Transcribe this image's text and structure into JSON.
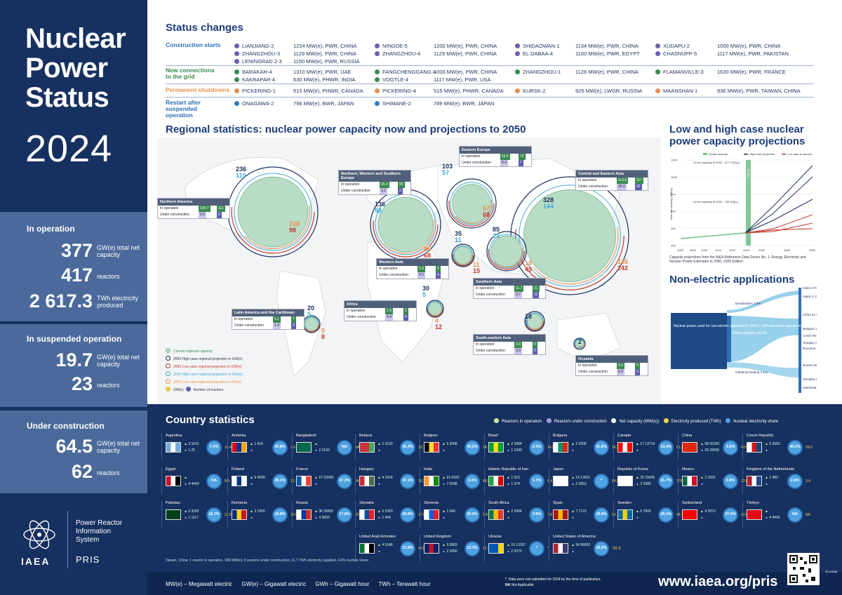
{
  "left": {
    "title": [
      "Nuclear",
      "Power",
      "Status"
    ],
    "year": "2024",
    "in_operation": {
      "heading": "In operation",
      "rows": [
        {
          "num": "377",
          "label": "GW(e) total net capacity"
        },
        {
          "num": "417",
          "label": "reactors"
        },
        {
          "num": "2 617.3",
          "label": "TWh electricity produced"
        }
      ]
    },
    "suspended": {
      "heading": "In suspended operation",
      "rows": [
        {
          "num": "19.7",
          "label": "GW(e) total net capacity"
        },
        {
          "num": "23",
          "label": "reactors"
        }
      ]
    },
    "construction": {
      "heading": "Under construction",
      "rows": [
        {
          "num": "64.5",
          "label": "GW(e) total net capacity"
        },
        {
          "num": "62",
          "label": "reactors"
        }
      ]
    },
    "pris_name": [
      "Power Reactor",
      "Information",
      "System"
    ],
    "pris": "PRIS",
    "iaea": "IAEA"
  },
  "status": {
    "title": "Status changes",
    "labels": {
      "starts": "Construction starts",
      "connections": "New connections to the grid",
      "shutdowns": "Permanent shutdowns",
      "restart": "Restart after suspended operation"
    },
    "colors": {
      "starts": "#6f5fb0",
      "connections": "#3a8a4f",
      "shutdowns": "#e8904e",
      "restart": "#2c7cc3"
    },
    "starts": [
      [
        "LIANJIANG-2",
        "1224 MW(e), PWR, CHINA"
      ],
      [
        "ZHANGZHOU-3",
        "1129 MW(e), PWR, CHINA"
      ],
      [
        "LENINGRAD 2-3",
        "1150 MW(e), PWR, RUSSIA"
      ],
      [
        "NINGDE-5",
        "1200 MW(e), PWR, CHINA"
      ],
      [
        "ZHANGZHOU-4",
        "1129 MW(e), PWR, CHINA"
      ],
      [
        "SHIDAOWAN-1",
        "1134 MW(e), PWR, CHINA"
      ],
      [
        "EL DABAA-4",
        "1100 MW(e), PWR, EGYPT"
      ],
      [
        "XUDAPU-2",
        "1000 MW(e), PWR, CHINA"
      ],
      [
        "CHASNUPP-5",
        "1117 MW(e), PWR, PAKISTAN"
      ]
    ],
    "connections": [
      [
        "BARAKAH-4",
        "1310 MW(e), PWR, UAE"
      ],
      [
        "KAKRAPAR-4",
        "630 MW(e), PHWR, INDIA"
      ],
      [
        "FANGCHENGGANG-4",
        "1000 MW(e), PWR, CHINA"
      ],
      [
        "VOGTLE-4",
        "1117 MW(e), PWR, USA"
      ],
      [
        "ZHANGZHOU-1",
        "1126 MW(e), PWR, CHINA"
      ],
      [
        "FLAMANVILLE-3",
        "1630 MW(e), PWR, FRANCE"
      ]
    ],
    "shutdowns": [
      [
        "PICKERING-1",
        "515 MW(e), PHWR, CANADA"
      ],
      [
        "PICKERING-4",
        "515 MW(e), PHWR, CANADA"
      ],
      [
        "KURSK-2",
        "925 MW(e), LWGR, RUSSIA"
      ],
      [
        "MAANSHAN-1",
        "936 MW(e), PWR, TAIWAN, CHINA"
      ]
    ],
    "restart": [
      [
        "ONAGAWA-2",
        "796 MW(e), BWR, JAPAN"
      ],
      [
        "SHIMANE-2",
        "789 MW(e), BWR, JAPAN"
      ]
    ]
  },
  "regional": {
    "title": "Regional statistics: nuclear power capacity now and projections to 2050",
    "row_op": "In operation",
    "row_uc": "Under construction",
    "regions": [
      {
        "name": "Northern America",
        "op": [
          "109.7",
          "111"
        ],
        "uc": [
          "0.0",
          "0"
        ],
        "hi": "236",
        "lo": "110",
        "h2": "108",
        "l2": "98"
      },
      {
        "name": "Northern, Western and Southern Europe",
        "op": [
          "95.4",
          "95"
        ],
        "uc": [
          "3.3",
          "2"
        ],
        "hi": "136",
        "lo": "92",
        "h2": "86",
        "l2": "68"
      },
      {
        "name": "Eastern Europe",
        "op": [
          "53.6",
          "72"
        ],
        "uc": [
          "6.4",
          "7"
        ],
        "hi": "103",
        "lo": "57",
        "h2": "57",
        "l2": "68"
      },
      {
        "name": "Central and Eastern Asia",
        "op": [
          "113.5",
          "117"
        ],
        "uc": [
          "35.0",
          "32"
        ],
        "hi": "328",
        "lo": "144",
        "h2": "136",
        "l2": "242"
      },
      {
        "name": "Western Asia",
        "op": [
          "5.8",
          "5"
        ],
        "uc": [
          "4.5",
          "4"
        ],
        "hi": "35",
        "lo": "11",
        "h2": "11",
        "l2": "15"
      },
      {
        "name": "Southern Asia",
        "op": [
          "11.7",
          "31"
        ],
        "uc": [
          "9.7",
          "11"
        ],
        "hi": "85",
        "lo": "22",
        "h2": "18",
        "l2": "45"
      },
      {
        "name": "Latin America and the Caribbean",
        "op": [
          "5.1",
          "7"
        ],
        "uc": [
          "1.4",
          "2"
        ],
        "hi": "20",
        "lo": "5",
        "h2": "5",
        "l2": "8"
      },
      {
        "name": "Africa",
        "op": [
          "1.9",
          "2"
        ],
        "uc": [
          "4.4",
          "4"
        ],
        "hi": "30",
        "lo": "5",
        "h2": "4",
        "l2": "12"
      },
      {
        "name": "South-eastern Asia",
        "op": [
          "0.0",
          "0"
        ],
        "uc": [
          "0.0",
          "0"
        ],
        "hi": "18",
        "lo": "4",
        "h2": "",
        "l2": ""
      },
      {
        "name": "Oceania",
        "op": [
          "0.0",
          "0"
        ],
        "uc": [
          "0.0",
          "0"
        ],
        "hi": "2",
        "lo": "0",
        "h2": "",
        "l2": ""
      }
    ],
    "legend": [
      "Current regional capacity",
      "2050 High case regional projection in GW(e)",
      "2050 Low case regional projection in GW(e)",
      "2030 High case regional projection in GW(e)",
      "2030 Low case regional projection in GW(e)"
    ],
    "legend_units": [
      "GW(e)",
      "Number of reactors"
    ]
  },
  "projection": {
    "title": "Low and high case nuclear power capacity projections",
    "legend": [
      "Actual capacity",
      "High case projection",
      "Low case projection"
    ],
    "note1": "2x the capacity of 2020 : 1177 GW(e)",
    "note2": "2x the capacity of 2023 : 765 GW(e)",
    "ylabel": "Total net capacity (GW(e))",
    "highlight": "COP28",
    "yticks": [
      "1200",
      "1000",
      "800",
      "600",
      "400",
      "300"
    ],
    "xticks": [
      "2000",
      "2004",
      "2009",
      "2014",
      "2019",
      "2024",
      "2030",
      "2040",
      "2050"
    ],
    "caption": "Capacity projections from the IAEA Reference Data Series No. 1: Energy, Electricity and Nuclear Power Estimates to 2050, 2025 Edition."
  },
  "nonelec": {
    "title": "Non-electric applications",
    "source": "Nuclear power used for non-electric applications 2644.1 GWh electrical equivalent of heat",
    "flows": [
      "Desalination 1.9%",
      "District heating 94.1%",
      "Industrial heating 4.1%"
    ],
    "targets": [
      "India 0.7%",
      "Japan 1.4%",
      "China 51.5%",
      "Bulgaria 1.4%",
      "Czech Republic 3.4%",
      "Hungary 0.4%",
      "Romania 1.1%",
      "Russia 36.6%",
      "Slovakia 3.3%",
      "Switzerland 0.7%"
    ]
  },
  "country": {
    "title": "Country statistics",
    "legend": [
      "Reactors in operation",
      "Reactors under construction",
      "Net capacity (MW(e))",
      "Electricity produced (TWh)",
      "Nuclear electricity share"
    ],
    "items": [
      {
        "name": "Argentina",
        "op": "3",
        "cap": "1641",
        "uc": "1",
        "ucc": "25",
        "share": "7.4%",
        "twh": "10.4",
        "c": [
          "#74acdf",
          "#ffffff",
          "#74acdf"
        ]
      },
      {
        "name": "Armenia",
        "op": "1",
        "cap": "416",
        "uc": "",
        "ucc": "",
        "share": "30.8%",
        "twh": "2.6",
        "c": [
          "#d90012",
          "#0033a0",
          "#f2a800"
        ]
      },
      {
        "name": "Bangladesh",
        "op": "",
        "cap": "",
        "uc": "2",
        "ucc": "2160",
        "share": "NA",
        "twh": "NA",
        "c": [
          "#006a4e",
          "#006a4e",
          "#006a4e"
        ]
      },
      {
        "name": "Belarus",
        "op": "2",
        "cap": "2220",
        "uc": "",
        "ucc": "",
        "share": "36.3%",
        "twh": "13.7",
        "c": [
          "#c8313e",
          "#c8313e",
          "#4aa657"
        ]
      },
      {
        "name": "Belgium",
        "op": "5",
        "cap": "3908",
        "uc": "",
        "ucc": "",
        "share": "42.2%",
        "twh": "28.7",
        "c": [
          "#000000",
          "#fdda24",
          "#ef3340"
        ]
      },
      {
        "name": "Brazil",
        "op": "2",
        "cap": "1884",
        "uc": "1",
        "ucc": "1340",
        "share": "2.3%",
        "twh": "14.9",
        "c": [
          "#009c3b",
          "#ffdf00",
          "#009c3b"
        ]
      },
      {
        "name": "Bulgaria",
        "op": "2",
        "cap": "2006",
        "uc": "",
        "ucc": "",
        "share": "41.6%",
        "twh": "16.1",
        "c": [
          "#ffffff",
          "#00966e",
          "#d62612"
        ]
      },
      {
        "name": "Canada",
        "op": "17",
        "cap": "12714",
        "uc": "",
        "ucc": "",
        "share": "13.4%",
        "twh": "81.2",
        "c": [
          "#ff0000",
          "#ffffff",
          "#ff0000"
        ]
      },
      {
        "name": "China",
        "op": "58",
        "cap": "55320",
        "uc": "29",
        "ucc": "28695",
        "share": "4.5%",
        "twh": "437.3",
        "c": [
          "#de2910",
          "#de2910",
          "#de2910"
        ]
      },
      {
        "name": "Czech Republic",
        "op": "6",
        "cap": "3963",
        "uc": "",
        "ucc": "",
        "share": "40.2%",
        "twh": "29.0",
        "c": [
          "#ffffff",
          "#d7141a",
          "#11457e"
        ]
      },
      {
        "name": "Egypt",
        "op": "",
        "cap": "",
        "uc": "4",
        "ucc": "4400",
        "share": "NA",
        "twh": "NA",
        "c": [
          "#ce1126",
          "#ffffff",
          "#000000"
        ]
      },
      {
        "name": "Finland",
        "op": "5",
        "cap": "4369",
        "uc": "",
        "ucc": "",
        "share": "39.1%",
        "twh": "31.1",
        "c": [
          "#ffffff",
          "#003580",
          "#ffffff"
        ]
      },
      {
        "name": "France",
        "op": "57",
        "cap": "63000",
        "uc": "",
        "ucc": "",
        "share": "67.3%",
        "twh": "364.4",
        "c": [
          "#0055a4",
          "#ffffff",
          "#ef4135"
        ]
      },
      {
        "name": "Hungary",
        "op": "4",
        "cap": "1916",
        "uc": "",
        "ucc": "",
        "share": "47.1%",
        "twh": "15.2",
        "c": [
          "#ce2939",
          "#ffffff",
          "#477050"
        ]
      },
      {
        "name": "India",
        "op": "21",
        "cap": "6920",
        "uc": "7",
        "ucc": "5398",
        "share": "3.3%",
        "twh": "48.3",
        "c": [
          "#ff9933",
          "#ffffff",
          "#138808"
        ]
      },
      {
        "name": "Islamic Republic of Iran",
        "op": "1",
        "cap": "915",
        "uc": "1",
        "ucc": "974",
        "share": "1.7%",
        "twh": "6.4",
        "c": [
          "#239f40",
          "#ffffff",
          "#da0000"
        ]
      },
      {
        "name": "Japan",
        "op": "14",
        "cap": "12631",
        "uc": "2",
        "ucc": "2653",
        "share": "*",
        "twh": "84.9",
        "c": [
          "#ffffff",
          "#ffffff",
          "#ffffff"
        ]
      },
      {
        "name": "Republic of Korea",
        "op": "26",
        "cap": "25609",
        "uc": "2",
        "ucc": "2680",
        "share": "31.7%",
        "twh": "179.4",
        "c": [
          "#ffffff",
          "#ffffff",
          "#ffffff"
        ]
      },
      {
        "name": "Mexico",
        "op": "2",
        "cap": "1552",
        "uc": "",
        "ucc": "",
        "share": "4.8%",
        "twh": "12.0",
        "c": [
          "#006847",
          "#ffffff",
          "#ce1126"
        ]
      },
      {
        "name": "Kingdom of the Netherlands",
        "op": "1",
        "cap": "482",
        "uc": "",
        "ucc": "",
        "share": "2.8%",
        "twh": "3.4",
        "c": [
          "#ae1c28",
          "#ffffff",
          "#21468b"
        ]
      },
      {
        "name": "Pakistan",
        "op": "6",
        "cap": "3262",
        "uc": "1",
        "ucc": "1117",
        "share": "16.7%",
        "twh": "22.8",
        "c": [
          "#01411c",
          "#01411c",
          "#01411c"
        ]
      },
      {
        "name": "Romania",
        "op": "2",
        "cap": "1300",
        "uc": "",
        "ucc": "",
        "share": "19.8%",
        "twh": "10.9",
        "c": [
          "#002b7f",
          "#fcd116",
          "#ce1126"
        ]
      },
      {
        "name": "Russia",
        "op": "36",
        "cap": "26802",
        "uc": "4",
        "ucc": "3850",
        "share": "17.8%",
        "twh": "202.1",
        "c": [
          "#ffffff",
          "#0039a6",
          "#d52b1e"
        ]
      },
      {
        "name": "Slovakia",
        "op": "5",
        "cap": "2303",
        "uc": "1",
        "ucc": "440",
        "share": "60.8%",
        "twh": "17.0",
        "c": [
          "#ffffff",
          "#0b4ea2",
          "#ee1c25"
        ]
      },
      {
        "name": "Slovenia",
        "op": "1",
        "cap": "696",
        "uc": "",
        "ucc": "",
        "share": "35.0%",
        "twh": "5.8",
        "c": [
          "#ffffff",
          "#005ce5",
          "#ed1c24"
        ]
      },
      {
        "name": "South Africa",
        "op": "2",
        "cap": "1854",
        "uc": "",
        "ucc": "",
        "share": "3.9%",
        "twh": "7.8",
        "c": [
          "#007a4d",
          "#ffb612",
          "#de3831"
        ]
      },
      {
        "name": "Spain",
        "op": "7",
        "cap": "7123",
        "uc": "",
        "ucc": "",
        "share": "19.9%",
        "twh": "52.1",
        "c": [
          "#aa151b",
          "#f1bf00",
          "#aa151b"
        ]
      },
      {
        "name": "Sweden",
        "op": "6",
        "cap": "7009",
        "uc": "",
        "ucc": "",
        "share": "29.1%",
        "twh": "48.7",
        "c": [
          "#006aa7",
          "#fecc00",
          "#006aa7"
        ]
      },
      {
        "name": "Switzerland",
        "op": "4",
        "cap": "2973",
        "uc": "",
        "ucc": "",
        "share": "27.0%",
        "twh": "23.0",
        "c": [
          "#ff0000",
          "#ff0000",
          "#ff0000"
        ]
      },
      {
        "name": "Türkiye",
        "op": "",
        "cap": "",
        "uc": "4",
        "ucc": "4456",
        "share": "NA",
        "twh": "NA",
        "c": [
          "#e30a17",
          "#e30a17",
          "#e30a17"
        ]
      },
      {
        "name": "United Arab Emirates",
        "op": "4",
        "cap": "5348",
        "uc": "",
        "ucc": "",
        "share": "21.8%",
        "twh": "40.5",
        "c": [
          "#00732f",
          "#ffffff",
          "#000000"
        ]
      },
      {
        "name": "United Kingdom",
        "op": "9",
        "cap": "5883",
        "uc": "2",
        "ucc": "3260",
        "share": "12.3%",
        "twh": "37.3",
        "c": [
          "#012169",
          "#c8102e",
          "#012169"
        ]
      },
      {
        "name": "Ukraine",
        "op": "15",
        "cap": "13107",
        "uc": "2",
        "ucc": "2070",
        "share": "*",
        "twh": "*",
        "c": [
          "#0057b7",
          "#0057b7",
          "#ffd700"
        ]
      },
      {
        "name": "United States of America",
        "op": "94",
        "cap": "96952",
        "uc": "",
        "ucc": "",
        "share": "18.2%",
        "twh": "781.8",
        "c": [
          "#b22234",
          "#ffffff",
          "#3c3b6e"
        ]
      }
    ],
    "footnote": "Taiwan, China: 1 reactor in operation, 938 MW(e); 0 reactors under construction; 11.7 TWh electricity supplied, 4.6% nuclear share.",
    "units": [
      "MW(e) – Megawatt electric",
      "GW(e) – Gigawatt electric",
      "GWh – Gigawatt hour",
      "TWh – Terawatt hour"
    ],
    "notes": [
      "Data were not submitted for 2024 by the time of publication.",
      "Not Applicable"
    ],
    "url": "www.iaea.org/pris",
    "code": "25-01558"
  }
}
